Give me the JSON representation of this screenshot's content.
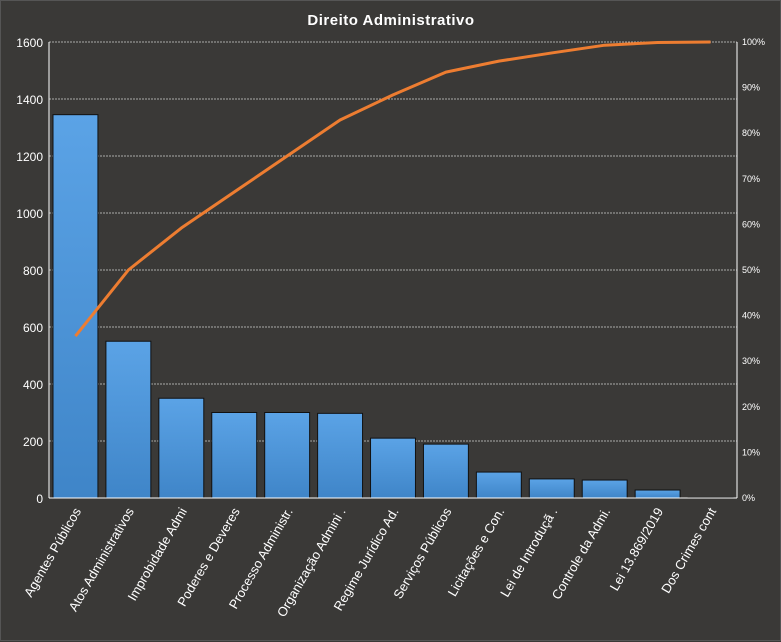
{
  "chart_data": {
    "type": "bar",
    "title": "Direito  Administrativo",
    "categories": [
      "Agentes Públicos",
      "Atos Administrativos",
      "Improbidade  Admi",
      "Poderes  e Deveres",
      "Processo Administr.",
      "Organização Admini .",
      "Regime Jurídico Ad.",
      "Serviços  Públicos",
      "Licitações e Con.",
      "Lei de Introduçã .",
      "Controle  da Admi.",
      "Lei 13.869/2019",
      "Dos Crimes cont"
    ],
    "values": [
      1345,
      550,
      350,
      300,
      300,
      297,
      210,
      189,
      91,
      67,
      63,
      28,
      2
    ],
    "cumulative_percent_line": {
      "type": "line",
      "axis": "right",
      "values": [
        35.5,
        50.0,
        59.2,
        67.1,
        75.0,
        82.9,
        88.4,
        93.4,
        95.8,
        97.6,
        99.3,
        99.9,
        100
      ]
    },
    "ylim": [
      0,
      1600
    ],
    "yticks": [
      0,
      200,
      400,
      600,
      800,
      1000,
      1200,
      1400,
      1600
    ],
    "y2lim": [
      0,
      100
    ],
    "y2ticks": [
      "0%",
      "10%",
      "20%",
      "30%",
      "40%",
      "50%",
      "60%",
      "70%",
      "80%",
      "90%",
      "100%"
    ],
    "grid": true,
    "colors": {
      "bar": "#4a8fd6",
      "line": "#ed7d31",
      "background": "#3a3937"
    }
  }
}
